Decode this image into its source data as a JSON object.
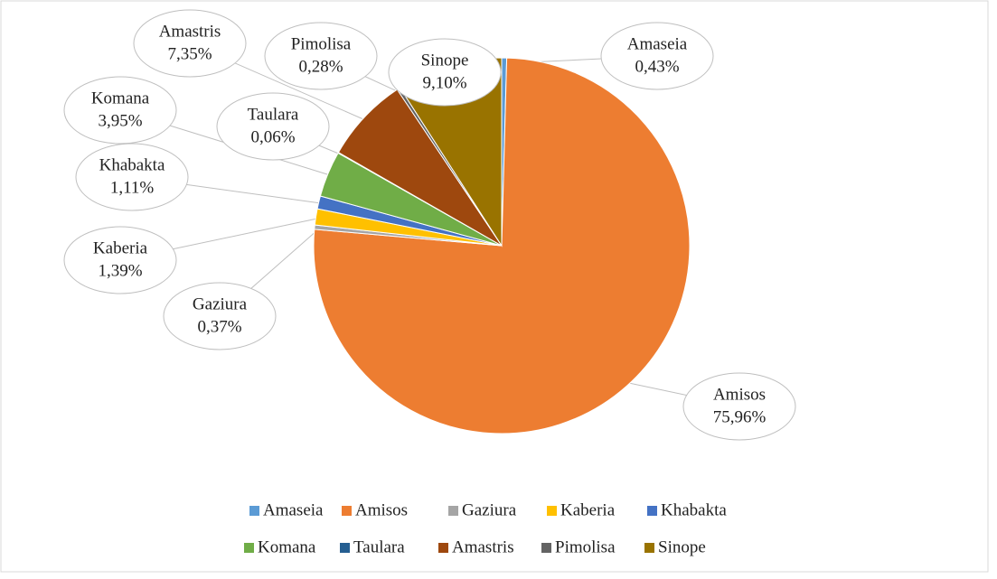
{
  "chart_data": {
    "type": "pie",
    "categories": [
      "Amaseia",
      "Amisos",
      "Gaziura",
      "Kaberia",
      "Khabakta",
      "Komana",
      "Taulara",
      "Amastris",
      "Pimolisa",
      "Sinope"
    ],
    "values": [
      0.43,
      75.96,
      0.37,
      1.39,
      1.11,
      3.95,
      0.06,
      7.35,
      0.28,
      9.1
    ],
    "value_labels": [
      "0,43%",
      "75,96%",
      "0,37%",
      "1,39%",
      "1,11%",
      "3,95%",
      "0,06%",
      "7,35%",
      "0,28%",
      "9,10%"
    ],
    "colors": [
      "#5b9bd5",
      "#ed7d31",
      "#a5a5a5",
      "#ffc000",
      "#4472c4",
      "#70ad47",
      "#255e91",
      "#9e480e",
      "#636363",
      "#997300"
    ],
    "legend": "bottom"
  }
}
